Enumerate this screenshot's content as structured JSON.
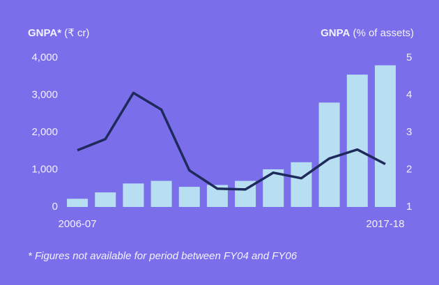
{
  "chart_data": {
    "type": "bar-line",
    "ylabel": [
      "GNPA*",
      "(₹ cr)"
    ],
    "y2label": [
      "GNPA",
      "(% of assets)"
    ],
    "footnote": "* Figures not available for period between FY04 and FY06",
    "categories": [
      "2006-07",
      null,
      null,
      null,
      null,
      null,
      null,
      null,
      null,
      null,
      null,
      "2017-18"
    ],
    "series": [
      {
        "name": "GNPA (₹ cr)",
        "type": "bar",
        "color": "#b8dff1",
        "values": [
          220,
          390,
          630,
          700,
          540,
          590,
          700,
          1010,
          1200,
          2800,
          3550,
          3800
        ]
      },
      {
        "name": "GNPA (% of assets)",
        "type": "line",
        "axis": "y2",
        "color": "#1f2a5c",
        "values": [
          2.52,
          2.82,
          4.06,
          3.61,
          1.98,
          1.49,
          1.47,
          1.92,
          1.77,
          2.3,
          2.54,
          2.15
        ]
      }
    ],
    "ylim": [
      0,
      4000
    ],
    "yticks": [
      0,
      {
        "value": 1000,
        "label": "1,000"
      },
      {
        "value": 2000,
        "label": "2,000"
      },
      {
        "value": 3000,
        "label": "3,000"
      },
      {
        "value": 4000,
        "label": "4,000"
      }
    ],
    "y2lim": [
      1,
      5
    ],
    "y2ticks": [
      1,
      2,
      3,
      4,
      5
    ]
  }
}
